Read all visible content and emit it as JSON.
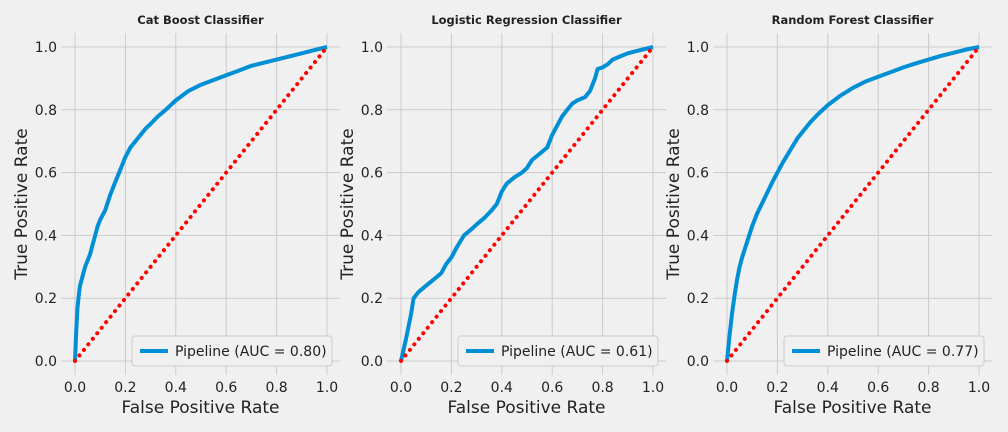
{
  "chart_data": [
    {
      "type": "line",
      "title": "Cat Boost Classifier",
      "xlabel": "False Positive Rate",
      "ylabel": "True Positive Rate",
      "xlim": [
        -0.03,
        1.05
      ],
      "ylim": [
        -0.03,
        1.04
      ],
      "xticks": [
        "0.0",
        "0.2",
        "0.4",
        "0.6",
        "0.8",
        "1.0"
      ],
      "yticks": [
        "0.0",
        "0.2",
        "0.4",
        "0.6",
        "0.8",
        "1.0"
      ],
      "grid": true,
      "legend_position": "lower right",
      "series": [
        {
          "name": "Pipeline (AUC = 0.80)",
          "color": "#008fd5",
          "style": "solid",
          "x": [
            0.0,
            0.005,
            0.01,
            0.015,
            0.02,
            0.03,
            0.04,
            0.05,
            0.06,
            0.07,
            0.08,
            0.09,
            0.1,
            0.12,
            0.14,
            0.16,
            0.18,
            0.2,
            0.22,
            0.25,
            0.28,
            0.3,
            0.33,
            0.36,
            0.4,
            0.45,
            0.5,
            0.55,
            0.6,
            0.65,
            0.7,
            0.75,
            0.8,
            0.85,
            0.9,
            0.95,
            1.0
          ],
          "y": [
            0.0,
            0.1,
            0.17,
            0.21,
            0.24,
            0.27,
            0.3,
            0.32,
            0.34,
            0.37,
            0.4,
            0.43,
            0.45,
            0.48,
            0.53,
            0.57,
            0.61,
            0.65,
            0.68,
            0.71,
            0.74,
            0.755,
            0.78,
            0.8,
            0.83,
            0.86,
            0.88,
            0.895,
            0.91,
            0.925,
            0.94,
            0.95,
            0.96,
            0.97,
            0.98,
            0.99,
            1.0
          ]
        },
        {
          "color": "#ff0000",
          "style": "dotted",
          "x": [
            0,
            1
          ],
          "y": [
            0,
            1
          ]
        }
      ]
    },
    {
      "type": "line",
      "title": "Logistic Regression Classifier",
      "xlabel": "False Positive Rate",
      "ylabel": "True Positive Rate",
      "xlim": [
        -0.03,
        1.05
      ],
      "ylim": [
        -0.03,
        1.04
      ],
      "xticks": [
        "0.0",
        "0.2",
        "0.4",
        "0.6",
        "0.8",
        "1.0"
      ],
      "yticks": [
        "0.0",
        "0.2",
        "0.4",
        "0.6",
        "0.8",
        "1.0"
      ],
      "grid": true,
      "legend_position": "lower right",
      "series": [
        {
          "name": "Pipeline (AUC = 0.61)",
          "color": "#008fd5",
          "style": "solid",
          "x": [
            0.0,
            0.02,
            0.04,
            0.05,
            0.07,
            0.1,
            0.13,
            0.16,
            0.18,
            0.2,
            0.22,
            0.25,
            0.28,
            0.3,
            0.33,
            0.36,
            0.38,
            0.39,
            0.4,
            0.42,
            0.45,
            0.48,
            0.5,
            0.52,
            0.55,
            0.58,
            0.6,
            0.62,
            0.64,
            0.66,
            0.68,
            0.7,
            0.73,
            0.75,
            0.77,
            0.78,
            0.8,
            0.82,
            0.84,
            0.87,
            0.9,
            0.95,
            1.0
          ],
          "y": [
            0.0,
            0.07,
            0.15,
            0.2,
            0.22,
            0.24,
            0.26,
            0.28,
            0.31,
            0.33,
            0.36,
            0.4,
            0.42,
            0.435,
            0.455,
            0.48,
            0.5,
            0.52,
            0.54,
            0.565,
            0.585,
            0.6,
            0.615,
            0.64,
            0.66,
            0.68,
            0.72,
            0.75,
            0.78,
            0.8,
            0.82,
            0.83,
            0.84,
            0.86,
            0.9,
            0.93,
            0.935,
            0.945,
            0.96,
            0.97,
            0.98,
            0.99,
            1.0
          ]
        },
        {
          "color": "#ff0000",
          "style": "dotted",
          "x": [
            0,
            1
          ],
          "y": [
            0,
            1
          ]
        }
      ]
    },
    {
      "type": "line",
      "title": "Random Forest Classifier",
      "xlabel": "False Positive Rate",
      "ylabel": "True Positive Rate",
      "xlim": [
        -0.03,
        1.05
      ],
      "ylim": [
        -0.03,
        1.04
      ],
      "xticks": [
        "0.0",
        "0.2",
        "0.4",
        "0.6",
        "0.8",
        "1.0"
      ],
      "yticks": [
        "0.0",
        "0.2",
        "0.4",
        "0.6",
        "0.8",
        "1.0"
      ],
      "grid": true,
      "legend_position": "lower right",
      "series": [
        {
          "name": "Pipeline (AUC = 0.77)",
          "color": "#008fd5",
          "style": "solid",
          "x": [
            0.0,
            0.01,
            0.02,
            0.03,
            0.04,
            0.05,
            0.06,
            0.08,
            0.1,
            0.12,
            0.15,
            0.18,
            0.2,
            0.22,
            0.25,
            0.28,
            0.3,
            0.33,
            0.36,
            0.4,
            0.45,
            0.5,
            0.55,
            0.6,
            0.65,
            0.7,
            0.75,
            0.8,
            0.85,
            0.9,
            0.95,
            1.0
          ],
          "y": [
            0.0,
            0.08,
            0.15,
            0.21,
            0.26,
            0.3,
            0.33,
            0.38,
            0.43,
            0.47,
            0.52,
            0.57,
            0.6,
            0.63,
            0.67,
            0.71,
            0.73,
            0.76,
            0.785,
            0.815,
            0.845,
            0.87,
            0.89,
            0.905,
            0.92,
            0.935,
            0.948,
            0.96,
            0.972,
            0.982,
            0.992,
            1.0
          ]
        },
        {
          "color": "#ff0000",
          "style": "dotted",
          "x": [
            0,
            1
          ],
          "y": [
            0,
            1
          ]
        }
      ]
    }
  ]
}
